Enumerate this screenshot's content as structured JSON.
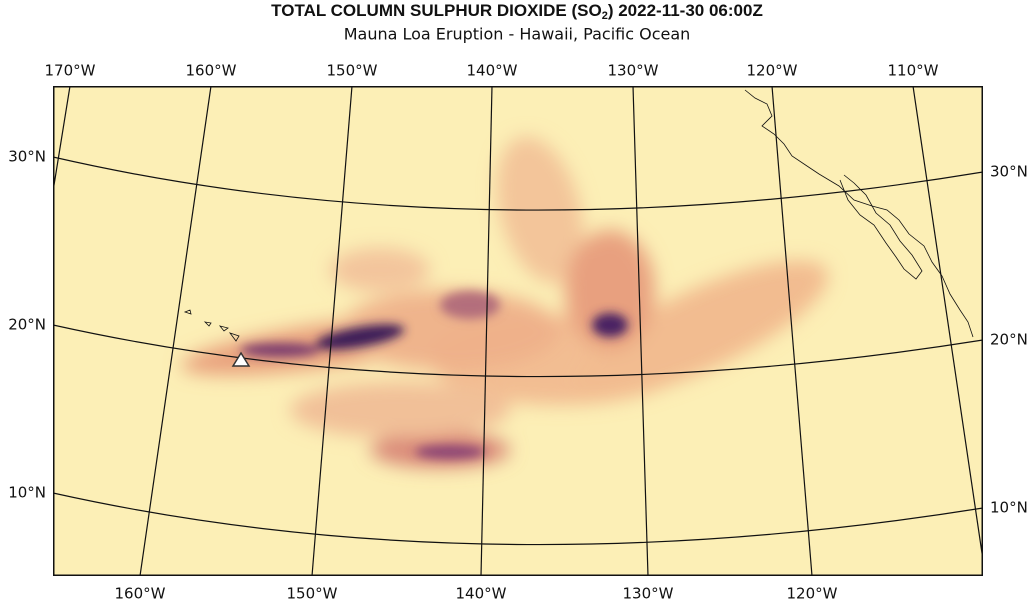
{
  "title": {
    "text": "TOTAL COLUMN SULPHUR DIOXIDE (SO",
    "subscript": "2",
    "suffix": ") 2022-11-30 06:00Z"
  },
  "subtitle": "Mauna Loa Eruption - Hawaii, Pacific Ocean",
  "top_labels": [
    "170°W",
    "160°W",
    "150°W",
    "140°W",
    "130°W",
    "120°W",
    "110°W"
  ],
  "bottom_labels": [
    "160°W",
    "150°W",
    "140°W",
    "130°W",
    "120°W"
  ],
  "left_labels": [
    "30°N",
    "20°N",
    "10°N"
  ],
  "right_labels": [
    "30°N",
    "20°N",
    "10°N"
  ]
}
